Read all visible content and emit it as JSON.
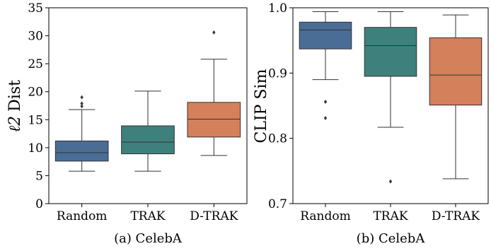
{
  "colors": {
    "Random": "#4a6d96",
    "TRAK": "#3e807b",
    "D-TRAK": "#d4805a",
    "line": "#333333"
  },
  "chart_data": [
    {
      "type": "box",
      "caption": "(a) CelebA",
      "ylabel": "Dist",
      "ylabel_math": "ℓ2",
      "ylim": [
        0,
        35
      ],
      "yticks": [
        0,
        5,
        10,
        15,
        20,
        25,
        30,
        35
      ],
      "ytick_labels": [
        "0",
        "5",
        "10",
        "15",
        "20",
        "25",
        "30",
        "35"
      ],
      "categories": [
        "Random",
        "TRAK",
        "D-TRAK"
      ],
      "boxes": [
        {
          "category": "Random",
          "whisker_low": 5.8,
          "q1": 7.6,
          "median": 9.1,
          "q3": 11.2,
          "whisker_high": 16.8,
          "outliers": [
            17.4,
            17.9,
            19.0
          ]
        },
        {
          "category": "TRAK",
          "whisker_low": 5.8,
          "q1": 8.9,
          "median": 11.0,
          "q3": 13.9,
          "whisker_high": 20.1,
          "outliers": []
        },
        {
          "category": "D-TRAK",
          "whisker_low": 8.6,
          "q1": 11.9,
          "median": 15.1,
          "q3": 18.1,
          "whisker_high": 25.8,
          "outliers": [
            30.6
          ]
        }
      ]
    },
    {
      "type": "box",
      "caption": "(b) CelebA",
      "ylabel": "CLIP Sim",
      "ylim": [
        0.7,
        1.0
      ],
      "yticks": [
        0.7,
        0.8,
        0.9,
        1.0
      ],
      "ytick_labels": [
        "0.7",
        "0.8",
        "0.9",
        "1.0"
      ],
      "categories": [
        "Random",
        "TRAK",
        "D-TRAK"
      ],
      "boxes": [
        {
          "category": "Random",
          "whisker_low": 0.89,
          "q1": 0.937,
          "median": 0.966,
          "q3": 0.978,
          "whisker_high": 0.994,
          "outliers": [
            0.856,
            0.831
          ]
        },
        {
          "category": "TRAK",
          "whisker_low": 0.817,
          "q1": 0.895,
          "median": 0.942,
          "q3": 0.97,
          "whisker_high": 0.994,
          "outliers": [
            0.734
          ]
        },
        {
          "category": "D-TRAK",
          "whisker_low": 0.738,
          "q1": 0.851,
          "median": 0.897,
          "q3": 0.954,
          "whisker_high": 0.989,
          "outliers": []
        }
      ]
    }
  ]
}
